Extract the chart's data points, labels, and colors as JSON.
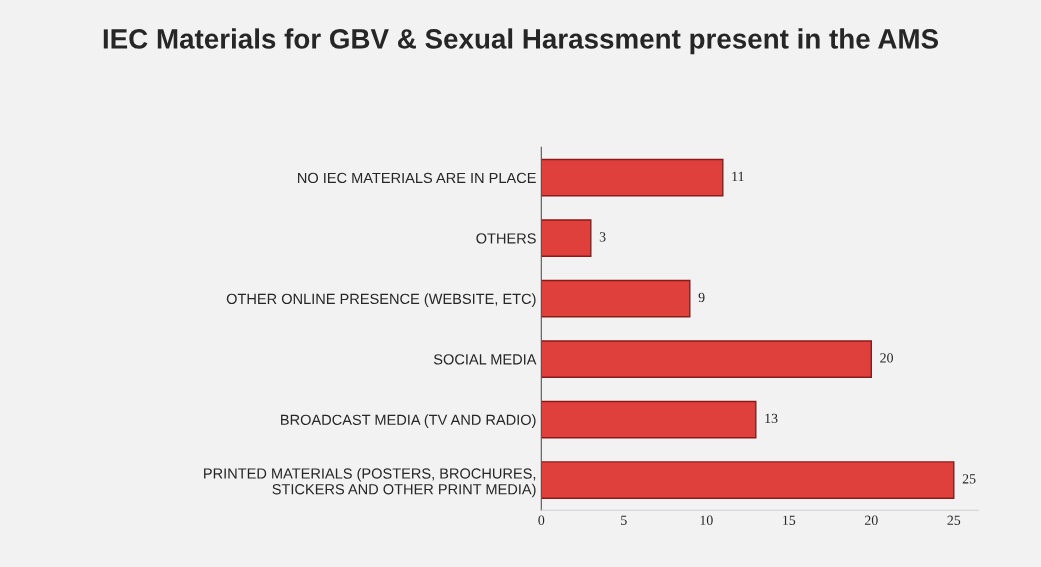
{
  "chart_data": {
    "type": "bar",
    "orientation": "horizontal",
    "title": "IEC Materials for GBV & Sexual Harassment present in the AMS",
    "categories": [
      "NO IEC MATERIALS ARE IN PLACE",
      "OTHERS",
      "OTHER ONLINE PRESENCE (WEBSITE, ETC)",
      "SOCIAL MEDIA",
      "BROADCAST MEDIA (TV AND RADIO)",
      "PRINTED MATERIALS (POSTERS, BROCHURES, STICKERS AND OTHER PRINT MEDIA)"
    ],
    "values": [
      11,
      3,
      9,
      20,
      13,
      25
    ],
    "color": "#e0403c",
    "xlim": [
      0,
      26.5
    ],
    "xticks": [
      0,
      5,
      10,
      15,
      20,
      25
    ],
    "data_labels": true,
    "grid": false
  }
}
